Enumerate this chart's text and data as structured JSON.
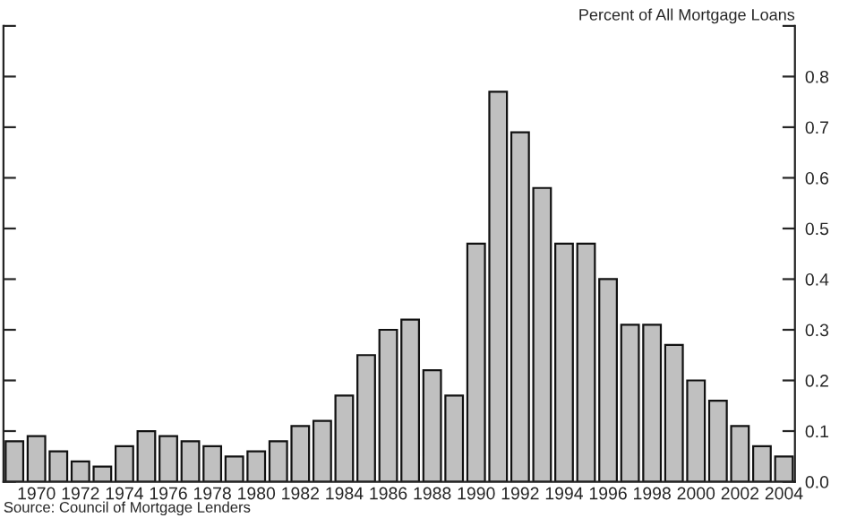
{
  "chart_data": {
    "type": "bar",
    "ylabel": "Percent of All Mortgage Loans",
    "annotations": [
      "Source: Council of Mortgage Lenders"
    ],
    "categories": [
      null,
      "1970",
      null,
      "1972",
      null,
      "1974",
      null,
      "1976",
      null,
      "1978",
      null,
      "1980",
      null,
      "1982",
      null,
      "1984",
      null,
      "1986",
      null,
      "1988",
      null,
      "1990",
      null,
      "1992",
      null,
      "1994",
      null,
      "1996",
      null,
      "1998",
      null,
      "2000",
      null,
      "2002",
      null,
      "2004"
    ],
    "values": [
      0.08,
      0.09,
      0.06,
      0.04,
      0.03,
      0.07,
      0.1,
      0.09,
      0.08,
      0.07,
      0.05,
      0.06,
      0.08,
      0.11,
      0.12,
      0.17,
      0.25,
      0.3,
      0.32,
      0.22,
      0.17,
      0.47,
      0.77,
      0.69,
      0.58,
      0.47,
      0.47,
      0.4,
      0.31,
      0.31,
      0.27,
      0.2,
      0.16,
      0.11,
      0.07,
      0.05
    ],
    "color": "#c0c0c0",
    "ylim": [
      0,
      0.9
    ],
    "yticks": [
      {
        "value": 0,
        "label": "0.0"
      },
      0.1,
      0.2,
      0.3,
      0.4,
      0.5,
      0.6,
      0.7,
      0.8,
      {
        "value": 0.9,
        "label": null
      }
    ],
    "grid": false,
    "legend": false
  }
}
